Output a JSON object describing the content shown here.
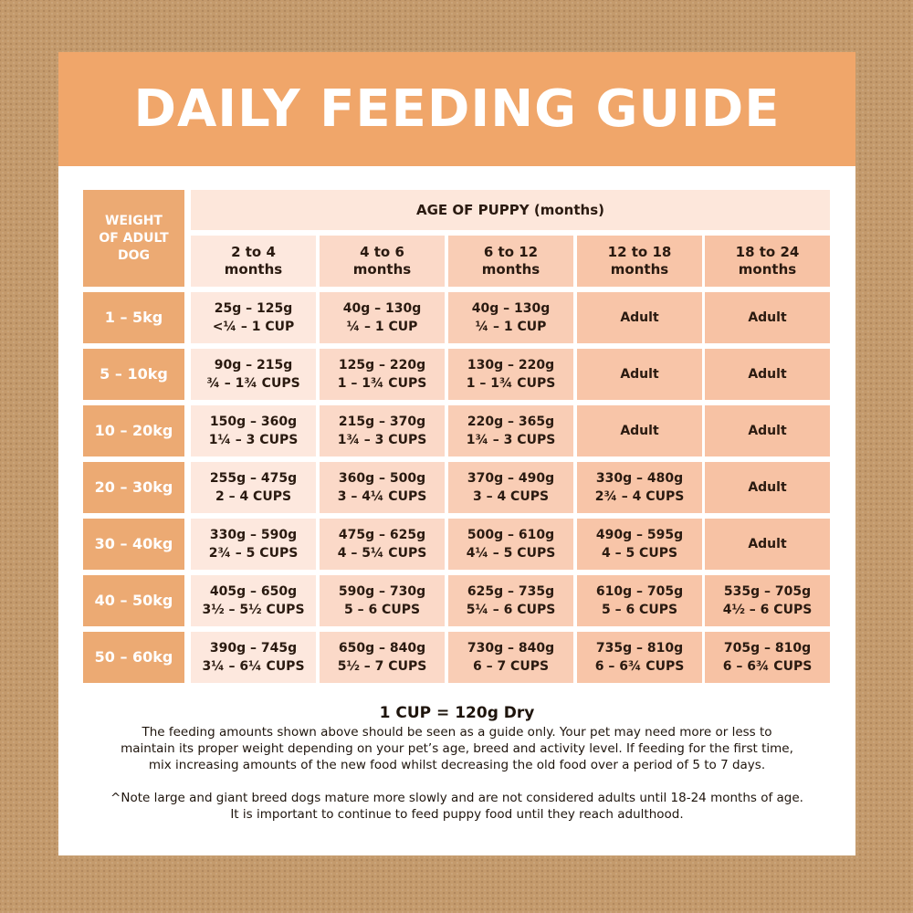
{
  "title": "DAILY FEEDING GUIDE",
  "table": {
    "weight_header": [
      "WEIGHT",
      "OF ADULT",
      "DOG"
    ],
    "age_header": "AGE OF PUPPY (months)",
    "columns": [
      [
        "2 to 4",
        "months"
      ],
      [
        "4 to 6",
        "months"
      ],
      [
        "6 to 12",
        "months"
      ],
      [
        "12 to 18",
        "months"
      ],
      [
        "18 to 24",
        "months"
      ]
    ],
    "rows": [
      {
        "weight": "1 – 5kg",
        "cells": [
          [
            "25g – 125g",
            "<¼ – 1 CUP"
          ],
          [
            "40g – 130g",
            "¼ – 1 CUP"
          ],
          [
            "40g – 130g",
            "¼ – 1 CUP"
          ],
          [
            "Adult"
          ],
          [
            "Adult"
          ]
        ]
      },
      {
        "weight": "5 – 10kg",
        "cells": [
          [
            "90g – 215g",
            "¾ – 1¾ CUPS"
          ],
          [
            "125g – 220g",
            "1 – 1¾ CUPS"
          ],
          [
            "130g – 220g",
            "1 – 1¾ CUPS"
          ],
          [
            "Adult"
          ],
          [
            "Adult"
          ]
        ]
      },
      {
        "weight": "10 – 20kg",
        "cells": [
          [
            "150g – 360g",
            "1¼ – 3 CUPS"
          ],
          [
            "215g – 370g",
            "1¾ – 3 CUPS"
          ],
          [
            "220g – 365g",
            "1¾ – 3 CUPS"
          ],
          [
            "Adult"
          ],
          [
            "Adult"
          ]
        ]
      },
      {
        "weight": "20 – 30kg",
        "cells": [
          [
            "255g – 475g",
            "2 – 4 CUPS"
          ],
          [
            "360g – 500g",
            "3 – 4¼ CUPS"
          ],
          [
            "370g – 490g",
            "3 – 4 CUPS"
          ],
          [
            "330g – 480g",
            "2¾ – 4 CUPS"
          ],
          [
            "Adult"
          ]
        ]
      },
      {
        "weight": "30 – 40kg",
        "cells": [
          [
            "330g – 590g",
            "2¾ – 5 CUPS"
          ],
          [
            "475g – 625g",
            "4 – 5¼ CUPS"
          ],
          [
            "500g – 610g",
            "4¼ – 5 CUPS"
          ],
          [
            "490g – 595g",
            "4 – 5 CUPS"
          ],
          [
            "Adult"
          ]
        ]
      },
      {
        "weight": "40 – 50kg",
        "cells": [
          [
            "405g – 650g",
            "3½ – 5½ CUPS"
          ],
          [
            "590g – 730g",
            "5 – 6 CUPS"
          ],
          [
            "625g – 735g",
            "5¼ – 6 CUPS"
          ],
          [
            "610g – 705g",
            "5 – 6 CUPS"
          ],
          [
            "535g – 705g",
            "4½ – 6 CUPS"
          ]
        ]
      },
      {
        "weight": "50 – 60kg",
        "cells": [
          [
            "390g – 745g",
            "3¼ – 6¼ CUPS"
          ],
          [
            "650g – 840g",
            "5½ – 7 CUPS"
          ],
          [
            "730g – 840g",
            "6 – 7 CUPS"
          ],
          [
            "735g – 810g",
            "6 – 6¾ CUPS"
          ],
          [
            "705g – 810g",
            "6 – 6¾ CUPS"
          ]
        ]
      }
    ]
  },
  "footer": {
    "cup": "1 CUP = 120g Dry",
    "paragraph_lines": [
      "The feeding amounts shown above should be seen as a guide only. Your pet may need more or less to",
      "maintain its proper weight depending on your pet’s age, breed and activity level. If feeding for the first time,",
      "mix increasing amounts of the new food whilst decreasing the old food over a period of 5 to 7 days."
    ],
    "note_lines": [
      "^Note large and giant breed dogs mature more slowly and are not considered adults until 18-24 months of age.",
      "It is important to continue to feed puppy food until they reach adulthood."
    ]
  },
  "colors": {
    "background": "#c49a6c",
    "banner": "#f0a66a",
    "weight_column": "#ecaa73",
    "age_header": "#fde7db",
    "column_shades": [
      "#fde8de",
      "#fbd9c8",
      "#f9cdb5",
      "#f8c5a8",
      "#f7c2a4"
    ]
  }
}
